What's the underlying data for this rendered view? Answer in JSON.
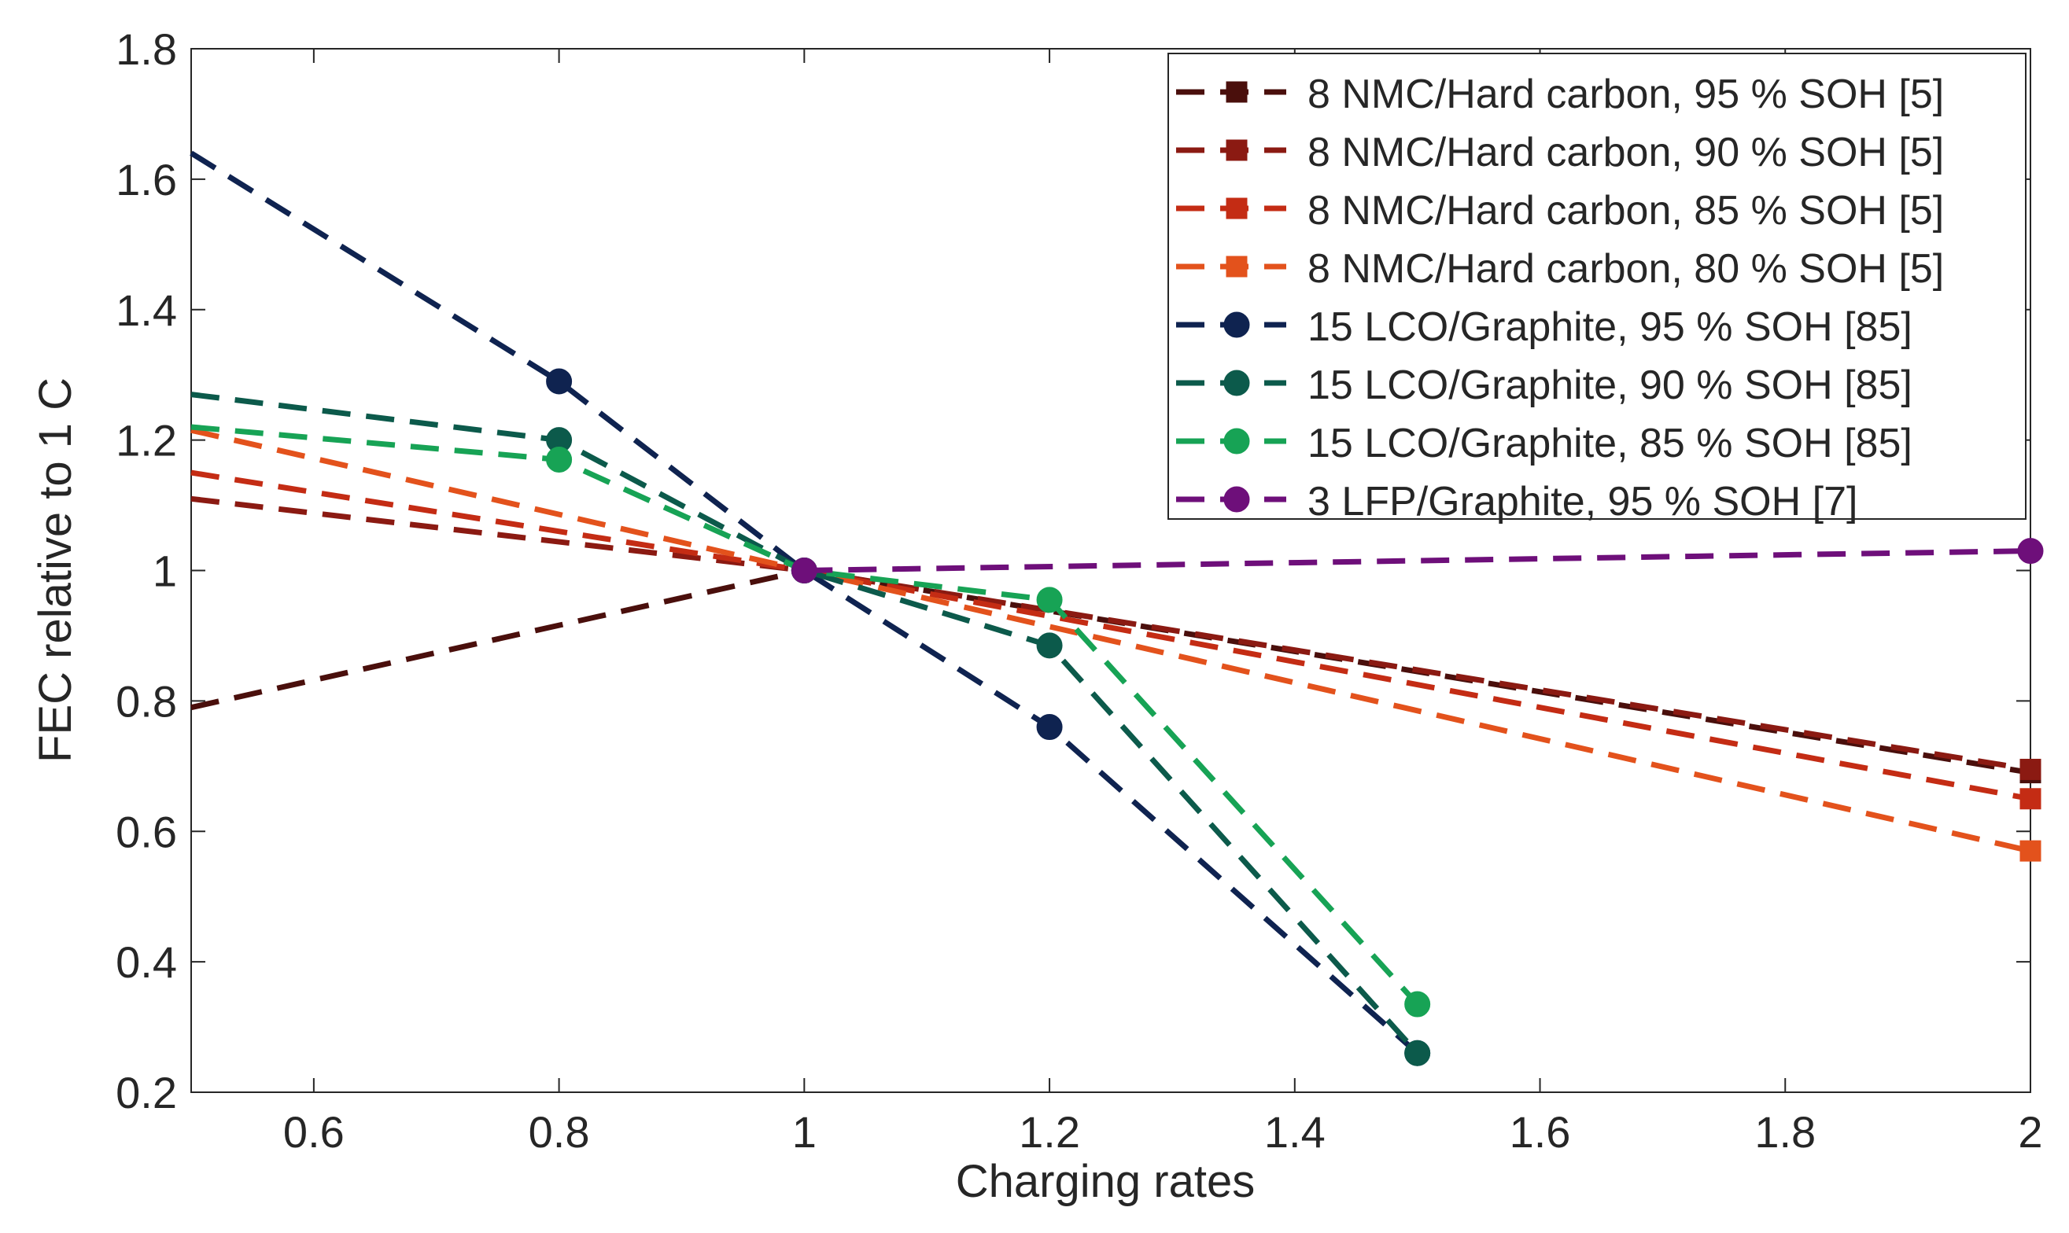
{
  "chart_data": {
    "type": "line",
    "title": "",
    "xlabel": "Charging rates",
    "ylabel": "FEC relative to 1 C",
    "xlim": [
      0.5,
      2
    ],
    "ylim": [
      0.2,
      1.8
    ],
    "xticks": [
      "0.6",
      "0.8",
      "1",
      "1.2",
      "1.4",
      "1.6",
      "1.8",
      "2"
    ],
    "yticks": [
      "0.2",
      "0.4",
      "0.6",
      "0.8",
      "1",
      "1.2",
      "1.4",
      "1.6",
      "1.8"
    ],
    "grid": false,
    "legend_position": "top-right",
    "series": [
      {
        "name": "8 NMC/Hard carbon, 95 % SOH [5]",
        "color": "#4a0f0c",
        "marker": "square",
        "x": [
          0.5,
          1,
          2
        ],
        "y": [
          0.79,
          1.0,
          0.69
        ],
        "markers_at": [
          2
        ]
      },
      {
        "name": "8 NMC/Hard carbon, 90 % SOH [5]",
        "color": "#8b1a12",
        "marker": "square",
        "x": [
          0.5,
          1,
          2
        ],
        "y": [
          1.11,
          1.0,
          0.695
        ],
        "markers_at": [
          2
        ]
      },
      {
        "name": "8 NMC/Hard carbon, 85 % SOH [5]",
        "color": "#c42c14",
        "marker": "square",
        "x": [
          0.5,
          1,
          2
        ],
        "y": [
          1.15,
          1.0,
          0.65
        ],
        "markers_at": [
          2
        ]
      },
      {
        "name": "8 NMC/Hard carbon, 80 % SOH [5]",
        "color": "#e3521c",
        "marker": "square",
        "x": [
          0.5,
          1,
          2
        ],
        "y": [
          1.215,
          1.0,
          0.57
        ],
        "markers_at": [
          2
        ]
      },
      {
        "name": "15 LCO/Graphite, 95 % SOH [85]",
        "color": "#0f2350",
        "marker": "circle",
        "x": [
          0.5,
          0.8,
          1,
          1.2,
          1.5
        ],
        "y": [
          1.64,
          1.29,
          1.0,
          0.76,
          0.26
        ],
        "markers_at": [
          1,
          2,
          3,
          4
        ]
      },
      {
        "name": "15 LCO/Graphite, 90 % SOH [85]",
        "color": "#0c5a4b",
        "marker": "circle",
        "x": [
          0.5,
          0.8,
          1,
          1.2,
          1.5
        ],
        "y": [
          1.27,
          1.2,
          1.0,
          0.885,
          0.26
        ],
        "markers_at": [
          1,
          2,
          3,
          4
        ]
      },
      {
        "name": "15 LCO/Graphite, 85 % SOH [85]",
        "color": "#17a355",
        "marker": "circle",
        "x": [
          0.5,
          0.8,
          1,
          1.2,
          1.5
        ],
        "y": [
          1.22,
          1.17,
          1.0,
          0.955,
          0.335
        ],
        "markers_at": [
          1,
          2,
          3,
          4
        ]
      },
      {
        "name": "3 LFP/Graphite, 95 % SOH [7]",
        "color": "#6e0f7a",
        "marker": "circle",
        "x": [
          1,
          2
        ],
        "y": [
          1.0,
          1.03
        ],
        "markers_at": [
          0,
          1
        ]
      }
    ]
  }
}
